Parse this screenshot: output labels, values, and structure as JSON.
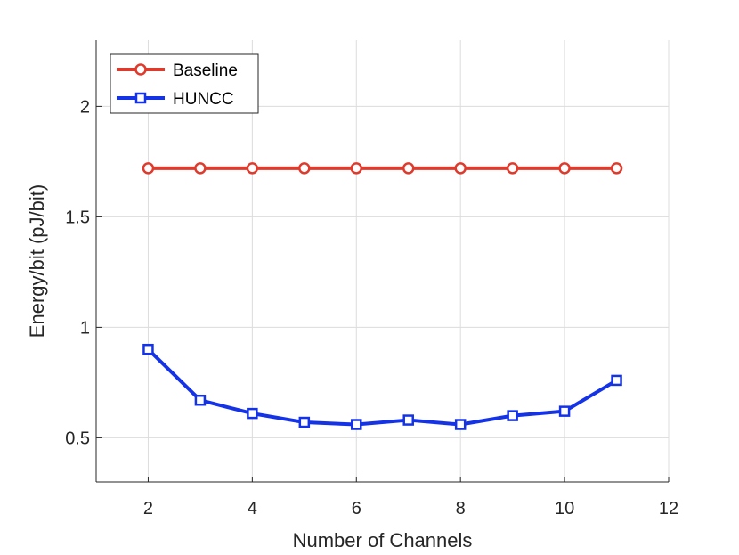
{
  "chart_data": {
    "type": "line",
    "xlabel": "Number of Channels",
    "ylabel": "Energy/bit (pJ/bit)",
    "xlim": [
      1,
      12
    ],
    "ylim": [
      0.3,
      2.3
    ],
    "xticks": [
      2,
      4,
      6,
      8,
      10,
      12
    ],
    "yticks": [
      0.5,
      1,
      1.5,
      2
    ],
    "xtick_labels": [
      "2",
      "4",
      "6",
      "8",
      "10",
      "12"
    ],
    "ytick_labels": [
      "0.5",
      "1",
      "1.5",
      "2"
    ],
    "grid": true,
    "legend_position": "top-left",
    "x": [
      2,
      3,
      4,
      5,
      6,
      7,
      8,
      9,
      10,
      11
    ],
    "series": [
      {
        "name": "Baseline",
        "marker": "circle",
        "color": "#e03a2c",
        "values": [
          1.72,
          1.72,
          1.72,
          1.72,
          1.72,
          1.72,
          1.72,
          1.72,
          1.72,
          1.72
        ]
      },
      {
        "name": "HUNCC",
        "marker": "square",
        "color": "#1533e6",
        "values": [
          0.9,
          0.67,
          0.61,
          0.57,
          0.56,
          0.58,
          0.56,
          0.6,
          0.62,
          0.76
        ]
      }
    ]
  }
}
